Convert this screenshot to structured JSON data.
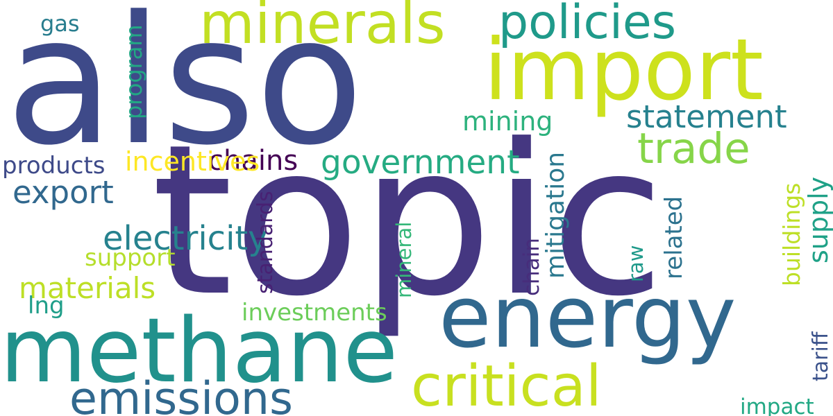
{
  "words": [
    {
      "text": "topic",
      "color": "#453781"
    },
    {
      "text": "also",
      "color": "#3e4a89"
    },
    {
      "text": "methane",
      "color": "#21918c"
    },
    {
      "text": "energy",
      "color": "#31688e"
    },
    {
      "text": "import",
      "color": "#cde11d"
    },
    {
      "text": "minerals",
      "color": "#c2df23"
    },
    {
      "text": "critical",
      "color": "#c8e020"
    },
    {
      "text": "emissions",
      "color": "#31688e"
    },
    {
      "text": "policies",
      "color": "#1f9a8a"
    },
    {
      "text": "trade",
      "color": "#86d549"
    },
    {
      "text": "government",
      "color": "#25ab82"
    },
    {
      "text": "statement",
      "color": "#26818e"
    },
    {
      "text": "export",
      "color": "#31688e"
    },
    {
      "text": "materials",
      "color": "#bddf26"
    },
    {
      "text": "chains",
      "color": "#440154"
    },
    {
      "text": "products",
      "color": "#3e4a89"
    },
    {
      "text": "mining",
      "color": "#2db27d"
    },
    {
      "text": "investments",
      "color": "#6ccd5a"
    },
    {
      "text": "electricity",
      "color": "#26828e"
    },
    {
      "text": "incentives",
      "color": "#fde725"
    },
    {
      "text": "lng",
      "color": "#1f9e89"
    },
    {
      "text": "gas",
      "color": "#287d8e"
    },
    {
      "text": "support",
      "color": "#b5de2b"
    },
    {
      "text": "impact",
      "color": "#22a884"
    },
    {
      "text": "supply",
      "color": "#1fa187"
    },
    {
      "text": "buildings",
      "color": "#bddf26"
    },
    {
      "text": "program",
      "color": "#22a884"
    },
    {
      "text": "standards",
      "color": "#482173"
    },
    {
      "text": "mineral",
      "color": "#35b779"
    },
    {
      "text": "mitigation",
      "color": "#2a788e"
    },
    {
      "text": "chain",
      "color": "#472d7b"
    },
    {
      "text": "raw",
      "color": "#1f9a8a"
    },
    {
      "text": "related",
      "color": "#2c728e"
    },
    {
      "text": "tariff",
      "color": "#3b528b"
    }
  ]
}
